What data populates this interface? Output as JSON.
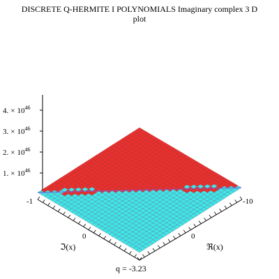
{
  "chart_data": {
    "type": "surface3d",
    "title_line1": "DISCRETE Q-HERMITE  I POLYNOMIALS Imaginary complex 3 D",
    "title_line2": "plot",
    "z_tick_mantissas": [
      "4.",
      "3.",
      "2.",
      "1."
    ],
    "z_tick_times": "×",
    "z_tick_base": "10",
    "z_tick_exponent": "46",
    "z_ticks": [
      4e+46,
      3e+46,
      2e+46,
      1e+46
    ],
    "imag_axis": {
      "label": "ℑ(x)",
      "ticks": [
        "-1",
        "0"
      ]
    },
    "real_axis": {
      "label": "ℜ(x)",
      "ticks": [
        "-10",
        "0"
      ]
    },
    "parameter_label": "q  =  -3.23",
    "colors": {
      "red": "#e8302e",
      "cyan": "#3ee6ec",
      "grid": "#7a1a1a",
      "axis": "#000000",
      "seam": "#7a5ad8"
    }
  }
}
